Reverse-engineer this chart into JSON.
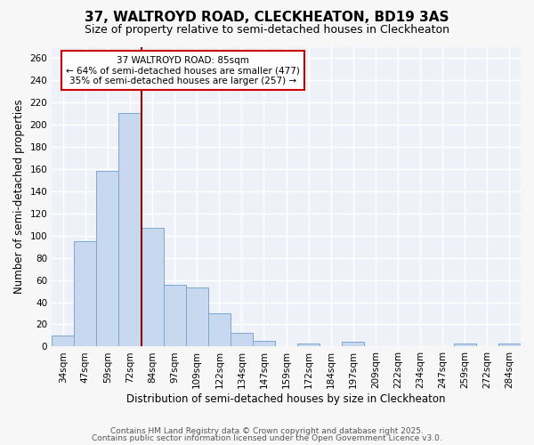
{
  "title": "37, WALTROYD ROAD, CLECKHEATON, BD19 3AS",
  "subtitle": "Size of property relative to semi-detached houses in Cleckheaton",
  "xlabel": "Distribution of semi-detached houses by size in Cleckheaton",
  "ylabel": "Number of semi-detached properties",
  "categories": [
    "34sqm",
    "47sqm",
    "59sqm",
    "72sqm",
    "84sqm",
    "97sqm",
    "109sqm",
    "122sqm",
    "134sqm",
    "147sqm",
    "159sqm",
    "172sqm",
    "184sqm",
    "197sqm",
    "209sqm",
    "222sqm",
    "234sqm",
    "247sqm",
    "259sqm",
    "272sqm",
    "284sqm"
  ],
  "values": [
    10,
    95,
    158,
    210,
    107,
    56,
    53,
    30,
    12,
    5,
    0,
    3,
    0,
    4,
    0,
    0,
    0,
    0,
    3,
    0,
    3
  ],
  "bar_color": "#c8d8ef",
  "bar_edge_color": "#7ca6d4",
  "vline_index": 4,
  "annotation_title": "37 WALTROYD ROAD: 85sqm",
  "annotation_line1": "← 64% of semi-detached houses are smaller (477)",
  "annotation_line2": "35% of semi-detached houses are larger (257) →",
  "annotation_box_color": "#ffffff",
  "annotation_box_edge_color": "#cc0000",
  "vline_color": "#8b0000",
  "ylim": [
    0,
    270
  ],
  "yticks": [
    0,
    20,
    40,
    60,
    80,
    100,
    120,
    140,
    160,
    180,
    200,
    220,
    240,
    260
  ],
  "footer1": "Contains HM Land Registry data © Crown copyright and database right 2025.",
  "footer2": "Contains public sector information licensed under the Open Government Licence v3.0.",
  "fig_bg_color": "#f7f7f7",
  "plot_bg_color": "#eef2f8",
  "grid_color": "#ffffff",
  "title_fontsize": 11,
  "subtitle_fontsize": 9,
  "axis_label_fontsize": 8.5,
  "tick_fontsize": 7.5,
  "footer_fontsize": 6.5
}
